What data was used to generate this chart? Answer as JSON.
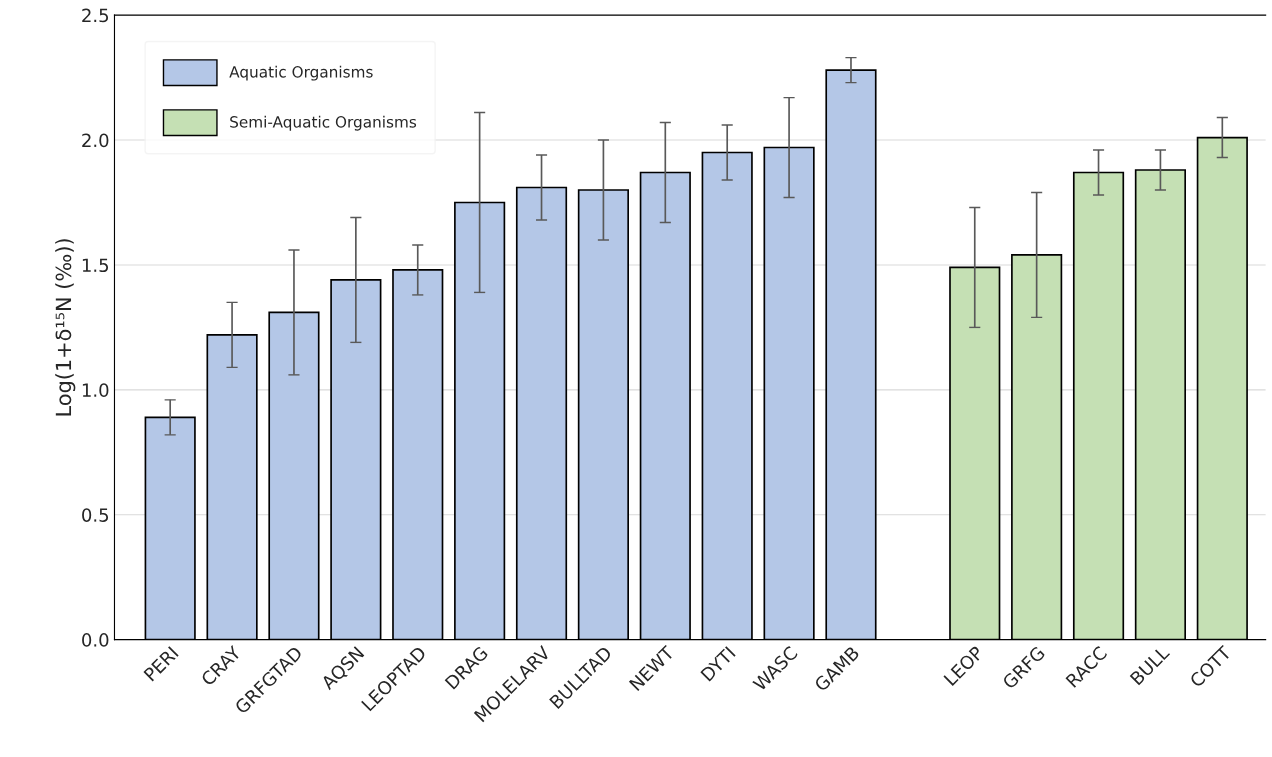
{
  "chart_data": {
    "type": "bar",
    "ylabel": "Log(1+δ¹⁵N (‰))",
    "categories": [
      "PERI",
      "CRAY",
      "GRFGTAD",
      "AQSN",
      "LEOPTAD",
      "DRAG",
      "MOLELARV",
      "BULLTAD",
      "NEWT",
      "DYTI",
      "WASC",
      "GAMB",
      null,
      "LEOP",
      "GRFG",
      "RACC",
      "BULL",
      "COTT"
    ],
    "series": [
      {
        "name": "Aquatic Organisms",
        "color": "#b4c7e7",
        "values": [
          0.89,
          1.22,
          1.31,
          1.44,
          1.48,
          1.75,
          1.81,
          1.8,
          1.87,
          1.95,
          1.97,
          2.28,
          null,
          null,
          null,
          null,
          null,
          null
        ],
        "errors": [
          0.07,
          0.13,
          0.25,
          0.25,
          0.1,
          0.36,
          0.13,
          0.2,
          0.2,
          0.11,
          0.2,
          0.05,
          null,
          null,
          null,
          null,
          null,
          null
        ]
      },
      {
        "name": "Semi-Aquatic Organisms",
        "color": "#c5e0b4",
        "values": [
          null,
          null,
          null,
          null,
          null,
          null,
          null,
          null,
          null,
          null,
          null,
          null,
          null,
          1.49,
          1.54,
          1.87,
          1.88,
          2.01
        ],
        "errors": [
          null,
          null,
          null,
          null,
          null,
          null,
          null,
          null,
          null,
          null,
          null,
          null,
          null,
          0.24,
          0.25,
          0.09,
          0.08,
          0.08
        ]
      }
    ],
    "ylim": [
      0,
      2.5
    ],
    "yticks": [
      {
        "value": 0,
        "label": "0.0"
      },
      {
        "value": 0.5,
        "label": "0.5"
      },
      {
        "value": 1,
        "label": "1.0"
      },
      {
        "value": 1.5,
        "label": "1.5"
      },
      {
        "value": 2,
        "label": "2.0"
      },
      {
        "value": 2.5,
        "label": "2.5"
      }
    ],
    "grid": "y",
    "legend": "top left"
  }
}
